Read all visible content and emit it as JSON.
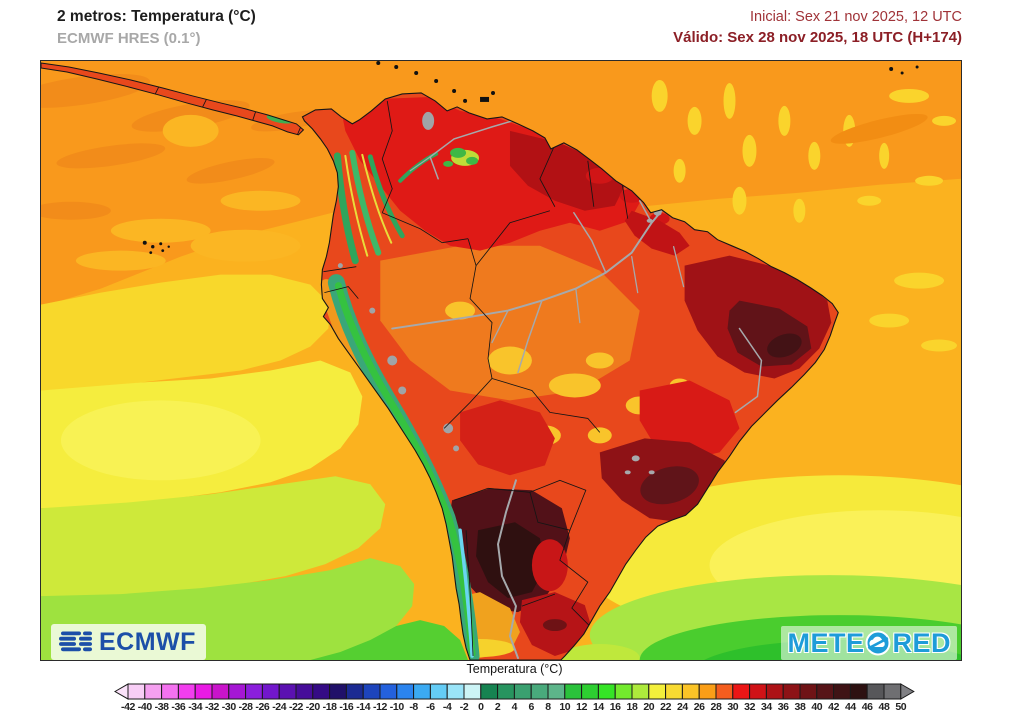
{
  "header": {
    "title": "2 metros: Temperatura (°C)",
    "subtitle": "ECMWF HRES (0.1°)",
    "init": "Inicial: Sex 21 nov 2025, 12 UTC",
    "valid": "Válido: Sex 28 nov 2025, 18 UTC (H+174)",
    "init_color": "#a03338",
    "valid_color": "#8c1f26"
  },
  "map": {
    "attribution_left": "ECMWF",
    "attribution_right_prefix": "METE",
    "attribution_right_suffix": "RED",
    "ecmwf_blue": "#1c4fa8",
    "meteored_blue": "#1E9CD9",
    "key_field_colors": {
      "ocean_north_orange": "#F9991C",
      "ocean_mid_yellow": "#F5ED3E",
      "ocean_south_green": "#55CF31",
      "land_hot_red": "#E8481C",
      "northeast_dark_red": "#611318",
      "chaco_darkest_maroon": "#2F1010",
      "andes_green": "#3AA778",
      "river_gray": "#A6A9AC"
    }
  },
  "colorbar": {
    "label": "Temperatura (°C)",
    "ticks": [
      -42,
      -40,
      -38,
      -36,
      -34,
      -32,
      -30,
      -28,
      -26,
      -24,
      -22,
      -20,
      -18,
      -16,
      -14,
      -12,
      -10,
      -8,
      -6,
      -4,
      -2,
      0,
      2,
      4,
      6,
      8,
      10,
      12,
      14,
      16,
      18,
      20,
      22,
      24,
      26,
      28,
      30,
      32,
      34,
      36,
      38,
      40,
      42,
      44,
      46,
      48,
      50
    ],
    "colors": [
      "#F8CEF6",
      "#F5A0F0",
      "#F472F0",
      "#F23EEE",
      "#E91AE4",
      "#C914CB",
      "#A517D4",
      "#8B1EDC",
      "#7217CC",
      "#5B11B1",
      "#460D99",
      "#350B85",
      "#201069",
      "#1B2A92",
      "#1D44BC",
      "#2461DD",
      "#2B84EE",
      "#3BAAF2",
      "#64CCF5",
      "#9AE4F8",
      "#CCF4F6",
      "#168351",
      "#27945F",
      "#3AA070",
      "#49AA7C",
      "#5DB58A",
      "#2AC23B",
      "#2DCF31",
      "#35E426",
      "#73EA2D",
      "#ADEA3C",
      "#F3EF3B",
      "#F8DA31",
      "#FBC427",
      "#FA9E17",
      "#F45D1E",
      "#EB1616",
      "#D01217",
      "#AD1216",
      "#8D1216",
      "#6F1316",
      "#571418",
      "#3F1315",
      "#2D1111",
      "#57575A",
      "#6F6F72"
    ],
    "arrow_left_color": "#FAE2F9",
    "arrow_right_color": "#808084"
  }
}
